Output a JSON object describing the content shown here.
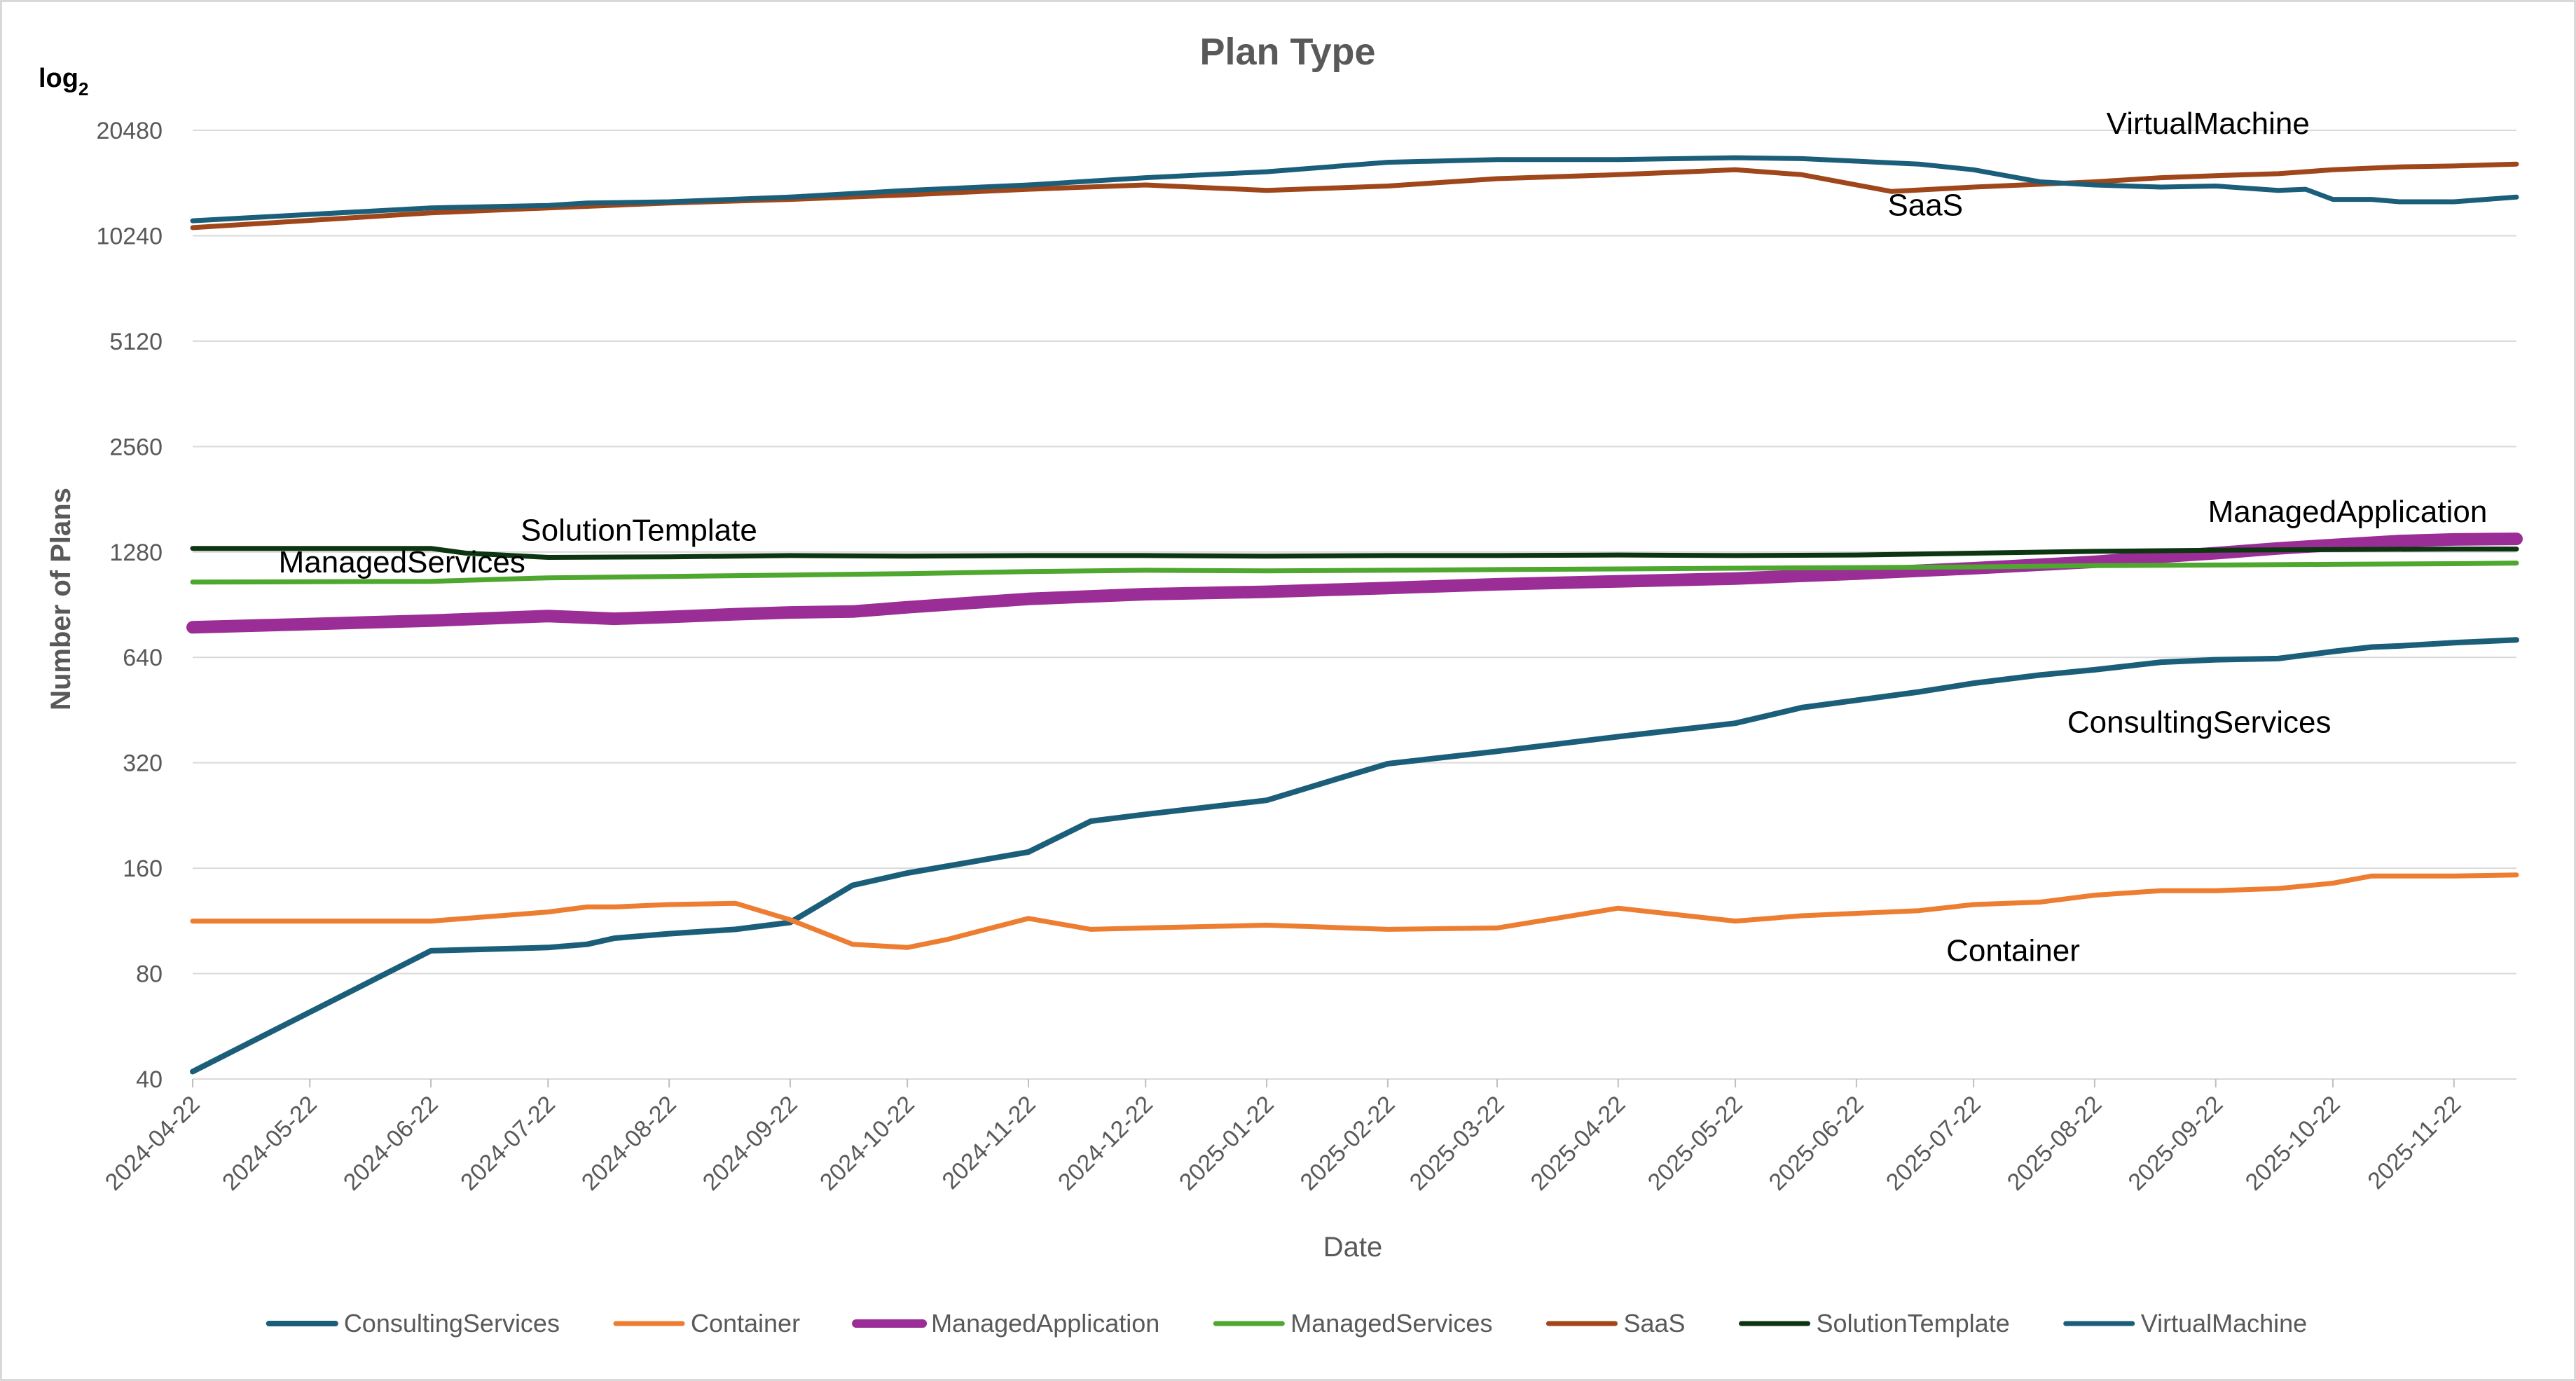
{
  "chart_data": {
    "type": "line",
    "title": "Plan Type",
    "xlabel": "Date",
    "ylabel": "Number of Plans",
    "yscale": "log2",
    "yscale_label": "log",
    "yscale_base": "2",
    "ylim": [
      40,
      20480
    ],
    "yticks": [
      "40",
      "80",
      "160",
      "320",
      "640",
      "1280",
      "2560",
      "5120",
      "10240",
      "20480"
    ],
    "ytick_values": [
      40,
      80,
      160,
      320,
      640,
      1280,
      2560,
      5120,
      10240,
      20480
    ],
    "xlim": [
      "2024-04-22",
      "2025-12-08"
    ],
    "xticks": [
      "2024-04-22",
      "2024-05-22",
      "2024-06-22",
      "2024-07-22",
      "2024-08-22",
      "2024-09-22",
      "2024-10-22",
      "2024-11-22",
      "2024-12-22",
      "2025-01-22",
      "2025-02-22",
      "2025-03-22",
      "2025-04-22",
      "2025-05-22",
      "2025-06-22",
      "2025-07-22",
      "2025-08-22",
      "2025-09-22",
      "2025-10-22",
      "2025-11-22"
    ],
    "legend_position": "bottom",
    "series": [
      {
        "name": "ConsultingServices",
        "color": "#1b5e7a",
        "width": 8,
        "label": "ConsultingServices",
        "label_at": [
          "2025-08-15",
          390
        ],
        "points": [
          [
            "2024-04-22",
            42
          ],
          [
            "2024-06-22",
            93
          ],
          [
            "2024-07-22",
            95
          ],
          [
            "2024-08-01",
            97
          ],
          [
            "2024-08-08",
            101
          ],
          [
            "2024-08-22",
            104
          ],
          [
            "2024-09-08",
            107
          ],
          [
            "2024-09-22",
            112
          ],
          [
            "2024-10-08",
            143
          ],
          [
            "2024-10-22",
            155
          ],
          [
            "2024-11-22",
            178
          ],
          [
            "2024-12-08",
            218
          ],
          [
            "2024-12-22",
            228
          ],
          [
            "2025-01-22",
            250
          ],
          [
            "2025-02-10",
            290
          ],
          [
            "2025-02-22",
            318
          ],
          [
            "2025-03-22",
            345
          ],
          [
            "2025-04-22",
            380
          ],
          [
            "2025-05-22",
            415
          ],
          [
            "2025-06-08",
            460
          ],
          [
            "2025-07-08",
            510
          ],
          [
            "2025-07-22",
            540
          ],
          [
            "2025-08-08",
            570
          ],
          [
            "2025-08-22",
            590
          ],
          [
            "2025-09-08",
            620
          ],
          [
            "2025-09-22",
            630
          ],
          [
            "2025-10-08",
            635
          ],
          [
            "2025-10-22",
            665
          ],
          [
            "2025-11-01",
            685
          ],
          [
            "2025-11-08",
            690
          ],
          [
            "2025-11-22",
            705
          ],
          [
            "2025-12-08",
            718
          ]
        ]
      },
      {
        "name": "Container",
        "color": "#ed7d31",
        "width": 7,
        "label": "Container",
        "label_at": [
          "2025-07-15",
          87
        ],
        "points": [
          [
            "2024-04-22",
            113
          ],
          [
            "2024-06-22",
            113
          ],
          [
            "2024-07-22",
            120
          ],
          [
            "2024-08-01",
            124
          ],
          [
            "2024-08-08",
            124
          ],
          [
            "2024-08-22",
            126
          ],
          [
            "2024-09-08",
            127
          ],
          [
            "2024-09-22",
            114
          ],
          [
            "2024-10-08",
            97
          ],
          [
            "2024-10-22",
            95
          ],
          [
            "2024-11-01",
            100
          ],
          [
            "2024-11-22",
            115
          ],
          [
            "2024-12-08",
            107
          ],
          [
            "2024-12-22",
            108
          ],
          [
            "2025-01-22",
            110
          ],
          [
            "2025-02-22",
            107
          ],
          [
            "2025-03-22",
            108
          ],
          [
            "2025-04-22",
            123
          ],
          [
            "2025-05-22",
            113
          ],
          [
            "2025-06-08",
            117
          ],
          [
            "2025-07-08",
            121
          ],
          [
            "2025-07-22",
            126
          ],
          [
            "2025-08-08",
            128
          ],
          [
            "2025-08-22",
            134
          ],
          [
            "2025-09-08",
            138
          ],
          [
            "2025-09-22",
            138
          ],
          [
            "2025-10-08",
            140
          ],
          [
            "2025-10-22",
            145
          ],
          [
            "2025-11-01",
            152
          ],
          [
            "2025-11-08",
            152
          ],
          [
            "2025-11-22",
            152
          ],
          [
            "2025-12-08",
            153
          ]
        ]
      },
      {
        "name": "ManagedApplication",
        "color": "#9b2d96",
        "width": 18,
        "label": "ManagedApplication",
        "label_at": [
          "2025-09-20",
          1560
        ],
        "points": [
          [
            "2024-04-22",
            780
          ],
          [
            "2024-06-22",
            815
          ],
          [
            "2024-07-22",
            840
          ],
          [
            "2024-08-08",
            825
          ],
          [
            "2024-08-22",
            835
          ],
          [
            "2024-09-08",
            850
          ],
          [
            "2024-09-22",
            860
          ],
          [
            "2024-10-08",
            865
          ],
          [
            "2024-10-22",
            890
          ],
          [
            "2024-11-22",
            940
          ],
          [
            "2024-12-22",
            970
          ],
          [
            "2025-01-22",
            985
          ],
          [
            "2025-02-22",
            1010
          ],
          [
            "2025-03-22",
            1035
          ],
          [
            "2025-04-22",
            1055
          ],
          [
            "2025-05-22",
            1075
          ],
          [
            "2025-06-22",
            1110
          ],
          [
            "2025-07-22",
            1150
          ],
          [
            "2025-08-22",
            1200
          ],
          [
            "2025-09-08",
            1240
          ],
          [
            "2025-09-22",
            1270
          ],
          [
            "2025-10-08",
            1310
          ],
          [
            "2025-10-22",
            1340
          ],
          [
            "2025-11-08",
            1375
          ],
          [
            "2025-11-22",
            1390
          ],
          [
            "2025-12-08",
            1395
          ]
        ]
      },
      {
        "name": "ManagedServices",
        "color": "#4ea72e",
        "width": 7,
        "label": "ManagedServices",
        "label_at": [
          "2024-05-14",
          1120
        ],
        "points": [
          [
            "2024-04-22",
            1050
          ],
          [
            "2024-06-22",
            1055
          ],
          [
            "2024-07-22",
            1080
          ],
          [
            "2024-08-22",
            1090
          ],
          [
            "2024-09-22",
            1100
          ],
          [
            "2024-10-22",
            1110
          ],
          [
            "2024-11-22",
            1125
          ],
          [
            "2024-12-22",
            1135
          ],
          [
            "2025-01-22",
            1130
          ],
          [
            "2025-02-22",
            1135
          ],
          [
            "2025-03-22",
            1140
          ],
          [
            "2025-04-22",
            1145
          ],
          [
            "2025-05-22",
            1150
          ],
          [
            "2025-06-22",
            1155
          ],
          [
            "2025-07-22",
            1160
          ],
          [
            "2025-08-22",
            1170
          ],
          [
            "2025-09-22",
            1175
          ],
          [
            "2025-10-22",
            1180
          ],
          [
            "2025-11-22",
            1185
          ],
          [
            "2025-12-08",
            1190
          ]
        ]
      },
      {
        "name": "SaaS",
        "color": "#a0461b",
        "width": 7,
        "label": "SaaS",
        "label_at": [
          "2025-06-30",
          11700
        ],
        "points": [
          [
            "2024-04-22",
            10800
          ],
          [
            "2024-06-22",
            11900
          ],
          [
            "2024-07-22",
            12300
          ],
          [
            "2024-08-22",
            12700
          ],
          [
            "2024-09-22",
            13000
          ],
          [
            "2024-10-22",
            13400
          ],
          [
            "2024-11-22",
            13900
          ],
          [
            "2024-12-22",
            14300
          ],
          [
            "2025-01-22",
            13800
          ],
          [
            "2025-02-22",
            14200
          ],
          [
            "2025-03-22",
            14900
          ],
          [
            "2025-04-22",
            15300
          ],
          [
            "2025-05-22",
            15800
          ],
          [
            "2025-06-08",
            15300
          ],
          [
            "2025-07-01",
            13700
          ],
          [
            "2025-07-22",
            14100
          ],
          [
            "2025-08-22",
            14600
          ],
          [
            "2025-09-08",
            15000
          ],
          [
            "2025-09-22",
            15200
          ],
          [
            "2025-10-08",
            15400
          ],
          [
            "2025-10-22",
            15800
          ],
          [
            "2025-11-08",
            16100
          ],
          [
            "2025-11-22",
            16200
          ],
          [
            "2025-12-08",
            16400
          ]
        ]
      },
      {
        "name": "SolutionTemplate",
        "color": "#0d3512",
        "width": 7,
        "label": "SolutionTemplate",
        "label_at": [
          "2024-07-15",
          1380
        ],
        "points": [
          [
            "2024-04-22",
            1310
          ],
          [
            "2024-06-22",
            1310
          ],
          [
            "2024-07-01",
            1270
          ],
          [
            "2024-07-22",
            1235
          ],
          [
            "2024-08-22",
            1240
          ],
          [
            "2024-09-22",
            1250
          ],
          [
            "2024-10-22",
            1245
          ],
          [
            "2024-11-22",
            1250
          ],
          [
            "2024-12-22",
            1250
          ],
          [
            "2025-01-22",
            1245
          ],
          [
            "2025-02-22",
            1250
          ],
          [
            "2025-03-22",
            1250
          ],
          [
            "2025-04-22",
            1255
          ],
          [
            "2025-05-22",
            1250
          ],
          [
            "2025-06-22",
            1255
          ],
          [
            "2025-07-22",
            1270
          ],
          [
            "2025-08-22",
            1285
          ],
          [
            "2025-09-22",
            1295
          ],
          [
            "2025-10-22",
            1300
          ],
          [
            "2025-11-22",
            1305
          ],
          [
            "2025-12-08",
            1305
          ]
        ]
      },
      {
        "name": "VirtualMachine",
        "color": "#1b5e7a",
        "width": 7,
        "label": "VirtualMachine",
        "label_at": [
          "2025-08-25",
          20000
        ],
        "points": [
          [
            "2024-04-22",
            11300
          ],
          [
            "2024-06-22",
            12300
          ],
          [
            "2024-07-22",
            12500
          ],
          [
            "2024-08-01",
            12700
          ],
          [
            "2024-08-22",
            12800
          ],
          [
            "2024-09-22",
            13200
          ],
          [
            "2024-10-22",
            13800
          ],
          [
            "2024-11-22",
            14300
          ],
          [
            "2024-12-22",
            15000
          ],
          [
            "2025-01-22",
            15600
          ],
          [
            "2025-02-22",
            16600
          ],
          [
            "2025-03-22",
            16900
          ],
          [
            "2025-04-22",
            16900
          ],
          [
            "2025-05-22",
            17100
          ],
          [
            "2025-06-08",
            17000
          ],
          [
            "2025-07-08",
            16400
          ],
          [
            "2025-07-22",
            15800
          ],
          [
            "2025-08-08",
            14600
          ],
          [
            "2025-08-22",
            14300
          ],
          [
            "2025-09-08",
            14100
          ],
          [
            "2025-09-22",
            14200
          ],
          [
            "2025-10-08",
            13800
          ],
          [
            "2025-10-15",
            13900
          ],
          [
            "2025-10-22",
            13000
          ],
          [
            "2025-11-01",
            13000
          ],
          [
            "2025-11-08",
            12800
          ],
          [
            "2025-11-22",
            12800
          ],
          [
            "2025-12-08",
            13200
          ]
        ]
      }
    ]
  }
}
